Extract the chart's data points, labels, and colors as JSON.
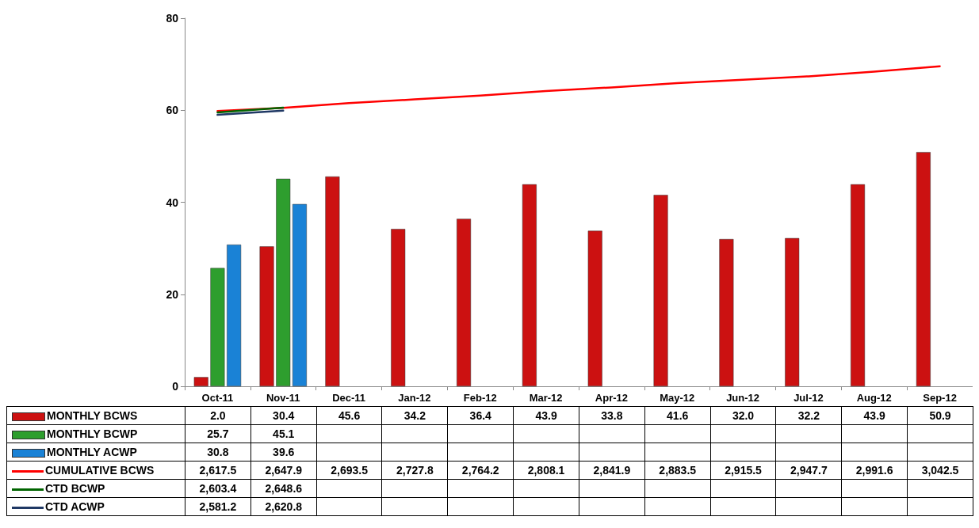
{
  "chart_data": {
    "type": "bar",
    "categories": [
      "Oct-11",
      "Nov-11",
      "Dec-11",
      "Jan-12",
      "Feb-12",
      "Mar-12",
      "Apr-12",
      "May-12",
      "Jun-12",
      "Jul-12",
      "Aug-12",
      "Sep-12"
    ],
    "series": [
      {
        "name": "MONTHLY BCWS",
        "color": "#cc1111",
        "values": [
          2.0,
          30.4,
          45.6,
          34.2,
          36.4,
          43.9,
          33.8,
          41.6,
          32.0,
          32.2,
          43.9,
          50.9
        ],
        "value_labels": [
          "2.0",
          "30.4",
          "45.6",
          "34.2",
          "36.4",
          "43.9",
          "33.8",
          "41.6",
          "32.0",
          "32.2",
          "43.9",
          "50.9"
        ]
      },
      {
        "name": "MONTHLY BCWP",
        "color": "#2e9e2e",
        "values": [
          25.7,
          45.1,
          null,
          null,
          null,
          null,
          null,
          null,
          null,
          null,
          null,
          null
        ],
        "value_labels": [
          "25.7",
          "45.1",
          null,
          null,
          null,
          null,
          null,
          null,
          null,
          null,
          null,
          null
        ]
      },
      {
        "name": "MONTHLY ACWP",
        "color": "#1a82d6",
        "values": [
          30.8,
          39.6,
          null,
          null,
          null,
          null,
          null,
          null,
          null,
          null,
          null,
          null
        ],
        "value_labels": [
          "30.8",
          "39.6",
          null,
          null,
          null,
          null,
          null,
          null,
          null,
          null,
          null,
          null
        ]
      },
      {
        "name": "CUMULATIVE BCWS",
        "type": "line",
        "axis": "y2",
        "color": "#ff0000",
        "values": [
          2617.5,
          2647.9,
          2693.5,
          2727.8,
          2764.2,
          2808.1,
          2841.9,
          2883.5,
          2915.5,
          2947.7,
          2991.6,
          3042.5
        ],
        "value_labels": [
          "2,617.5",
          "2,647.9",
          "2,693.5",
          "2,727.8",
          "2,764.2",
          "2,808.1",
          "2,841.9",
          "2,883.5",
          "2,915.5",
          "2,947.7",
          "2,991.6",
          "3,042.5"
        ]
      },
      {
        "name": "CTD BCWP",
        "type": "line",
        "axis": "y2",
        "color": "#006400",
        "values": [
          2603.4,
          2648.6,
          null,
          null,
          null,
          null,
          null,
          null,
          null,
          null,
          null,
          null
        ],
        "value_labels": [
          "2,603.4",
          "2,648.6",
          null,
          null,
          null,
          null,
          null,
          null,
          null,
          null,
          null,
          null
        ]
      },
      {
        "name": "CTD ACWP",
        "type": "line",
        "axis": "y2",
        "color": "#1f3864",
        "values": [
          2581.2,
          2620.8,
          null,
          null,
          null,
          null,
          null,
          null,
          null,
          null,
          null,
          null
        ],
        "value_labels": [
          "2,581.2",
          "2,620.8",
          null,
          null,
          null,
          null,
          null,
          null,
          null,
          null,
          null,
          null
        ]
      }
    ],
    "ylim": [
      0,
      80
    ],
    "yticks": [
      0,
      20,
      40,
      60,
      80
    ],
    "legend": "bottom left",
    "grid": false,
    "marker": "none",
    "line_style": "solid"
  }
}
